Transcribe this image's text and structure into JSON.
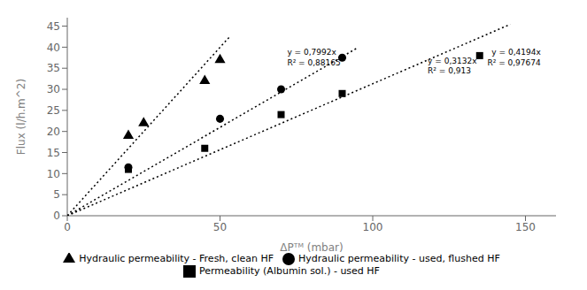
{
  "chart_data": {
    "type": "scatter",
    "xlabel": "ΔPᵀᴹ (mbar)",
    "ylabel": "Flux (l/h.m^2)",
    "xlim": [
      0,
      160
    ],
    "ylim": [
      0,
      47
    ],
    "xticks": [
      0,
      50,
      100,
      150
    ],
    "yticks": [
      0,
      5,
      10,
      15,
      20,
      25,
      30,
      35,
      40,
      45
    ],
    "grid": false,
    "legend": "bottom",
    "series": [
      {
        "type": "line",
        "line_style": "dotted",
        "color": "black",
        "x": [
          0,
          53
        ],
        "values": [
          0,
          42.3576
        ]
      },
      {
        "type": "line",
        "line_style": "dotted",
        "color": "black",
        "x": [
          0,
          95
        ],
        "values": [
          0,
          39.843
        ]
      },
      {
        "type": "line",
        "line_style": "dotted",
        "color": "black",
        "x": [
          0,
          145
        ],
        "values": [
          0,
          45.414
        ]
      },
      {
        "type": "scatter",
        "name": "Hydraulic permeability - Fresh, clean HF",
        "marker": "triangle",
        "color": "black",
        "x": [
          20,
          25,
          45,
          50
        ],
        "values": [
          19,
          22,
          32,
          37
        ]
      },
      {
        "type": "scatter",
        "name": "Permeability (Albumin sol.) - used HF",
        "marker": "square",
        "color": "black",
        "x": [
          20,
          45,
          70,
          90,
          135
        ],
        "values": [
          11,
          16,
          24,
          29,
          38
        ]
      },
      {
        "type": "scatter",
        "name": "Hydraulic permeability - used, flushed HF",
        "marker": "circle",
        "color": "black",
        "x": [
          20,
          50,
          70,
          90
        ],
        "values": [
          11.5,
          23,
          30,
          37.5
        ]
      }
    ],
    "annotations": [
      {
        "text": "y = 0,7992x\nR² = 0,88165",
        "x": 72,
        "y": 40
      },
      {
        "text": "y = 0,4194x\nR² = 0,97674",
        "x": 155,
        "y": 40
      },
      {
        "text": "y = 0,3132x\nR² = 0,913",
        "x": 118,
        "y": 38
      }
    ]
  }
}
